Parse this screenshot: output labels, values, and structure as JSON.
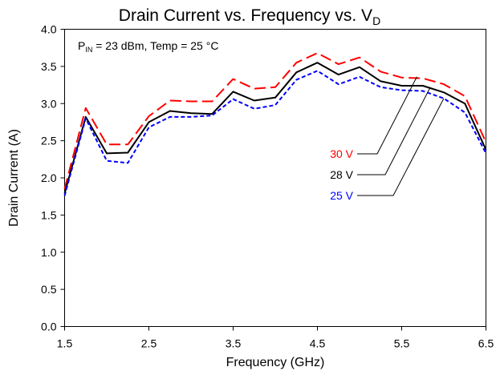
{
  "chart_data": {
    "type": "line",
    "title": "Drain Current vs. Frequency vs. V",
    "title_subscript": "D",
    "xlabel": "Frequency (GHz)",
    "ylabel": "Drain Current (A)",
    "xlim": [
      1.5,
      6.5
    ],
    "ylim": [
      0.0,
      4.0
    ],
    "xticks": [
      "1.5",
      "2.5",
      "3.5",
      "4.5",
      "5.5",
      "6.5"
    ],
    "yticks": [
      "0.0",
      "0.5",
      "1.0",
      "1.5",
      "2.0",
      "2.5",
      "3.0",
      "3.5",
      "4.0"
    ],
    "grid": false,
    "annotation": {
      "p_prefix": "P",
      "p_subscript": "IN",
      "rest": " = 23 dBm, Temp = 25 °C"
    },
    "x": [
      1.5,
      1.75,
      2.0,
      2.25,
      2.5,
      2.75,
      3.0,
      3.25,
      3.5,
      3.75,
      4.0,
      4.25,
      4.5,
      4.75,
      5.0,
      5.25,
      5.5,
      5.75,
      6.0,
      6.25,
      6.5
    ],
    "series": [
      {
        "name": "30 V",
        "color": "#ff0000",
        "dash": "long-dash",
        "values": [
          1.85,
          2.94,
          2.45,
          2.45,
          2.83,
          3.04,
          3.03,
          3.03,
          3.33,
          3.2,
          3.22,
          3.55,
          3.68,
          3.53,
          3.62,
          3.43,
          3.35,
          3.34,
          3.26,
          3.1,
          2.48
        ]
      },
      {
        "name": "28 V",
        "color": "#000000",
        "dash": "solid",
        "values": [
          1.79,
          2.82,
          2.33,
          2.34,
          2.75,
          2.9,
          2.87,
          2.86,
          3.16,
          3.04,
          3.08,
          3.42,
          3.55,
          3.39,
          3.49,
          3.3,
          3.24,
          3.24,
          3.15,
          3.0,
          2.38
        ]
      },
      {
        "name": "25 V",
        "color": "#0000ff",
        "dash": "short-dash",
        "values": [
          1.76,
          2.8,
          2.23,
          2.2,
          2.68,
          2.82,
          2.82,
          2.84,
          3.06,
          2.93,
          2.98,
          3.32,
          3.44,
          3.26,
          3.36,
          3.22,
          3.18,
          3.17,
          3.07,
          2.88,
          2.33
        ]
      }
    ],
    "leader_lines": [
      {
        "series": 0,
        "target_x": 5.68,
        "target_y": 3.36
      },
      {
        "series": 1,
        "target_x": 5.84,
        "target_y": 3.22
      },
      {
        "series": 2,
        "target_x": 6.0,
        "target_y": 3.07
      }
    ]
  }
}
